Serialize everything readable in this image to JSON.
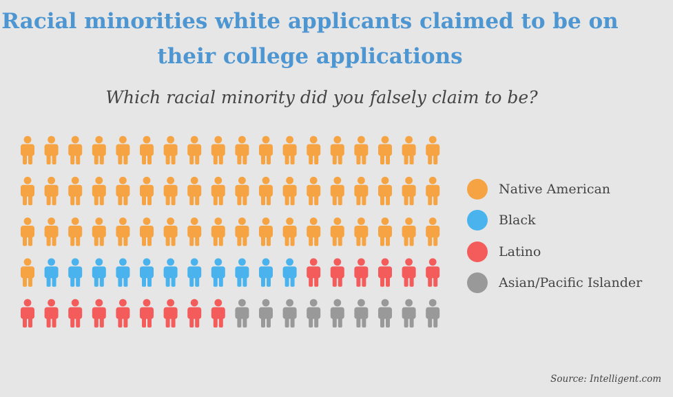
{
  "header": {
    "title": "Racial minorities white applicants claimed to be on their college applications",
    "subtitle": "Which racial minority did you falsely claim to be?"
  },
  "chart_data": {
    "type": "pictograph",
    "title": "Racial minorities white applicants claimed to be on their college applications",
    "subtitle": "Which racial minority did you falsely claim to be?",
    "total_icons": 90,
    "rows": 5,
    "columns": 18,
    "fill_order": "row-major",
    "categories": [
      "Native American",
      "Black",
      "Latino",
      "Asian/Pacific Islander"
    ],
    "values": [
      55,
      11,
      15,
      9
    ],
    "series": [
      {
        "name": "Native American",
        "value": 55,
        "color": "#f6a443"
      },
      {
        "name": "Black",
        "value": 11,
        "color": "#4ab3ee"
      },
      {
        "name": "Latino",
        "value": 15,
        "color": "#f45c5c"
      },
      {
        "name": "Asian/Pacific Islander",
        "value": 9,
        "color": "#999999"
      }
    ],
    "legend_position": "right",
    "icon": "person-icon"
  },
  "source": "Source: Intelligent.com"
}
